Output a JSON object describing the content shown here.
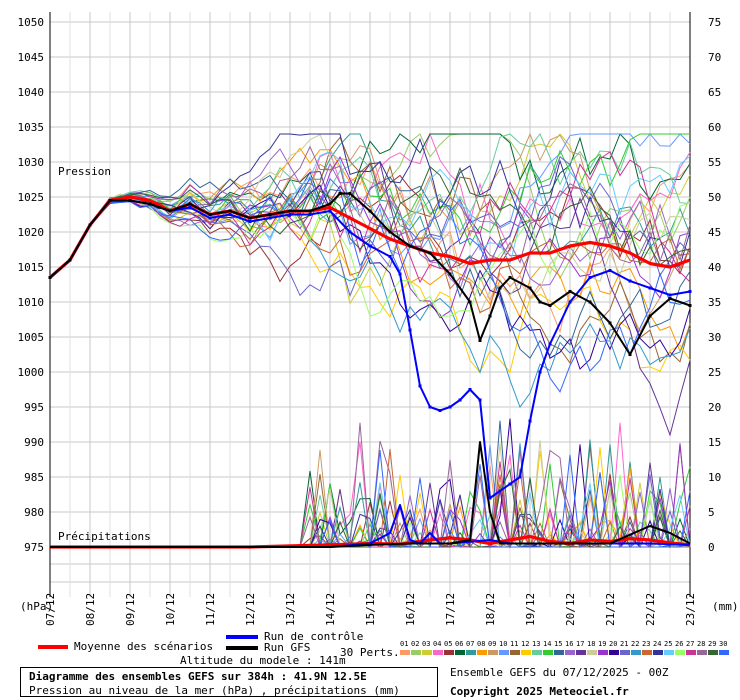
{
  "chart_data": {
    "type": "line",
    "title": "Diagramme des ensembles GEFS sur 384h : 41.9N 12.5E",
    "subtitle": "Pression au niveau de la mer (hPa) , précipitations (mm)",
    "left_axis_unit": "(hPa)",
    "right_axis_unit": "(mm)",
    "pressure_label": "Pression",
    "precip_label": "Précipitations",
    "left_ticks": [
      1050,
      1045,
      1040,
      1035,
      1030,
      1025,
      1020,
      1015,
      1010,
      1005,
      1000,
      995,
      990,
      985,
      980,
      975
    ],
    "right_ticks": [
      75,
      70,
      65,
      60,
      55,
      50,
      45,
      40,
      35,
      30,
      25,
      20,
      15,
      10,
      5,
      0
    ],
    "pressure_ylim": [
      975,
      1050
    ],
    "precip_ylim": [
      0,
      75
    ],
    "x_labels": [
      "07/12",
      "08/12",
      "09/12",
      "10/12",
      "11/12",
      "12/12",
      "13/12",
      "14/12",
      "15/12",
      "16/12",
      "17/12",
      "18/12",
      "19/12",
      "20/12",
      "21/12",
      "22/12",
      "23/12"
    ],
    "x_range_hours": [
      0,
      384
    ],
    "grid": true,
    "series": [
      {
        "name": "Moyenne des scénarios",
        "color": "#ff0000",
        "pressure": [
          [
            0,
            1013.5
          ],
          [
            12,
            1016
          ],
          [
            24,
            1021
          ],
          [
            36,
            1024.5
          ],
          [
            48,
            1025
          ],
          [
            60,
            1024.5
          ],
          [
            72,
            1023
          ],
          [
            84,
            1024
          ],
          [
            96,
            1022.5
          ],
          [
            108,
            1023
          ],
          [
            120,
            1022
          ],
          [
            132,
            1022.5
          ],
          [
            144,
            1023
          ],
          [
            156,
            1023
          ],
          [
            168,
            1023.5
          ],
          [
            180,
            1022
          ],
          [
            192,
            1020.5
          ],
          [
            204,
            1019
          ],
          [
            216,
            1018
          ],
          [
            228,
            1017
          ],
          [
            240,
            1016.5
          ],
          [
            252,
            1015.5
          ],
          [
            264,
            1016
          ],
          [
            276,
            1016
          ],
          [
            288,
            1017
          ],
          [
            300,
            1017
          ],
          [
            312,
            1018
          ],
          [
            324,
            1018.5
          ],
          [
            336,
            1018
          ],
          [
            348,
            1017
          ],
          [
            360,
            1015.5
          ],
          [
            372,
            1015
          ],
          [
            384,
            1016
          ]
        ],
        "precip": [
          [
            0,
            0
          ],
          [
            120,
            0
          ],
          [
            168,
            0.3
          ],
          [
            192,
            0.5
          ],
          [
            210,
            0.4
          ],
          [
            228,
            1
          ],
          [
            240,
            1.3
          ],
          [
            252,
            1
          ],
          [
            264,
            0.5
          ],
          [
            276,
            1
          ],
          [
            288,
            1.5
          ],
          [
            300,
            0.8
          ],
          [
            312,
            0.5
          ],
          [
            324,
            1
          ],
          [
            336,
            0.8
          ],
          [
            348,
            1.2
          ],
          [
            360,
            1
          ],
          [
            372,
            0.6
          ],
          [
            384,
            0.3
          ]
        ]
      },
      {
        "name": "Run de contrôle",
        "color": "#0000ff",
        "pressure": [
          [
            0,
            1013.5
          ],
          [
            12,
            1016
          ],
          [
            24,
            1021
          ],
          [
            36,
            1024.5
          ],
          [
            48,
            1024.5
          ],
          [
            60,
            1024
          ],
          [
            72,
            1023
          ],
          [
            84,
            1023.5
          ],
          [
            96,
            1022
          ],
          [
            108,
            1022.5
          ],
          [
            120,
            1021.5
          ],
          [
            132,
            1022
          ],
          [
            144,
            1022.5
          ],
          [
            156,
            1022.5
          ],
          [
            168,
            1023
          ],
          [
            180,
            1020
          ],
          [
            192,
            1018
          ],
          [
            204,
            1016.5
          ],
          [
            210,
            1014
          ],
          [
            216,
            1006
          ],
          [
            222,
            998
          ],
          [
            228,
            995
          ],
          [
            234,
            994.5
          ],
          [
            240,
            995
          ],
          [
            246,
            996
          ],
          [
            252,
            997.5
          ],
          [
            258,
            996
          ],
          [
            264,
            982
          ],
          [
            270,
            983
          ],
          [
            276,
            984
          ],
          [
            282,
            985
          ],
          [
            288,
            993
          ],
          [
            294,
            1000
          ],
          [
            300,
            1004
          ],
          [
            312,
            1010
          ],
          [
            324,
            1013.5
          ],
          [
            336,
            1014.5
          ],
          [
            348,
            1013
          ],
          [
            360,
            1012
          ],
          [
            372,
            1011
          ],
          [
            384,
            1011.5
          ]
        ],
        "precip": [
          [
            0,
            0
          ],
          [
            168,
            0
          ],
          [
            192,
            0.5
          ],
          [
            204,
            2
          ],
          [
            210,
            6
          ],
          [
            216,
            1
          ],
          [
            222,
            0.5
          ],
          [
            228,
            2
          ],
          [
            234,
            0.5
          ],
          [
            240,
            0.5
          ],
          [
            264,
            1
          ],
          [
            276,
            0.5
          ],
          [
            288,
            0.5
          ],
          [
            300,
            0.5
          ],
          [
            336,
            0.5
          ],
          [
            360,
            0.5
          ],
          [
            384,
            0.3
          ]
        ]
      },
      {
        "name": "Run GFS",
        "color": "#000000",
        "pressure": [
          [
            0,
            1013.5
          ],
          [
            12,
            1016
          ],
          [
            24,
            1021
          ],
          [
            36,
            1024.5
          ],
          [
            48,
            1024.5
          ],
          [
            60,
            1024
          ],
          [
            72,
            1023
          ],
          [
            84,
            1024
          ],
          [
            96,
            1022.5
          ],
          [
            108,
            1023
          ],
          [
            120,
            1022
          ],
          [
            132,
            1022.5
          ],
          [
            144,
            1023
          ],
          [
            156,
            1023
          ],
          [
            168,
            1024
          ],
          [
            174,
            1025.5
          ],
          [
            180,
            1025.5
          ],
          [
            192,
            1023
          ],
          [
            204,
            1020
          ],
          [
            216,
            1018
          ],
          [
            228,
            1017
          ],
          [
            240,
            1014
          ],
          [
            252,
            1010
          ],
          [
            258,
            1004.5
          ],
          [
            264,
            1008
          ],
          [
            270,
            1012
          ],
          [
            276,
            1013.5
          ],
          [
            288,
            1012
          ],
          [
            294,
            1010
          ],
          [
            300,
            1009.5
          ],
          [
            312,
            1011.5
          ],
          [
            324,
            1010
          ],
          [
            336,
            1007
          ],
          [
            348,
            1002.5
          ],
          [
            360,
            1008
          ],
          [
            372,
            1010.5
          ],
          [
            384,
            1009.5
          ]
        ],
        "precip": [
          [
            0,
            0
          ],
          [
            168,
            0
          ],
          [
            192,
            0.3
          ],
          [
            216,
            0.5
          ],
          [
            240,
            0.5
          ],
          [
            252,
            1
          ],
          [
            258,
            15
          ],
          [
            264,
            5
          ],
          [
            270,
            0.5
          ],
          [
            288,
            0.5
          ],
          [
            312,
            0.5
          ],
          [
            336,
            0.5
          ],
          [
            360,
            3
          ],
          [
            372,
            2
          ],
          [
            384,
            0.5
          ]
        ]
      }
    ],
    "perturbations_count": 30
  },
  "legend": {
    "mean_label": "Moyenne des scénarios",
    "control_label": "Run de contrôle",
    "gfs_label": "Run GFS",
    "perts_label": "30 Perts.",
    "altitude": "Altitude du modele : 141m",
    "pert_numbers": [
      "01",
      "02",
      "03",
      "04",
      "05",
      "06",
      "07",
      "08",
      "09",
      "10",
      "11",
      "12",
      "13",
      "14",
      "15",
      "16",
      "17",
      "18",
      "19",
      "20",
      "21",
      "22",
      "23",
      "24",
      "25",
      "26",
      "27",
      "28",
      "29",
      "30"
    ],
    "pert_colors": [
      "#ff9966",
      "#99cc66",
      "#cccc33",
      "#ff66cc",
      "#993333",
      "#006633",
      "#339999",
      "#ff9900",
      "#cc9966",
      "#6699ff",
      "#996633",
      "#ffcc00",
      "#66cc99",
      "#33cc33",
      "#336699",
      "#9966cc",
      "#663399",
      "#cccc99",
      "#9933cc",
      "#330099",
      "#6666cc",
      "#3399cc",
      "#cc6633",
      "#333399",
      "#66ccff",
      "#99ff66",
      "#cc3399",
      "#996699",
      "#336633",
      "#3366ff"
    ]
  },
  "footer": {
    "title": "Diagramme des ensembles GEFS sur 384h : 41.9N 12.5E",
    "subtitle": "Pression au niveau de la mer (hPa) , précipitations (mm)",
    "run": "Ensemble GEFS du 07/12/2025 - 00Z",
    "copyright": "Copyright 2025 Meteociel.fr"
  }
}
